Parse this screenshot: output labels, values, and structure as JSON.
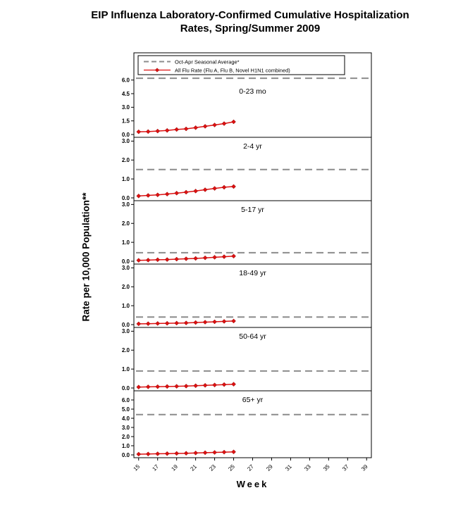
{
  "title": {
    "line1": "EIP Influenza Laboratory-Confirmed Cumulative Hospitalization",
    "line2": "Rates, Spring/Summer 2009"
  },
  "axis": {
    "ylabel": "Rate per 10,000 Population**",
    "xlabel": "Week"
  },
  "legend": {
    "items": [
      {
        "name": "seasonal-average",
        "label": "Oct-Apr Seasonal Average*",
        "style": "dashed-gray-line"
      },
      {
        "name": "all-flu-rate",
        "label": "All Flu Rate (Flu A, Flu B, Novel H1N1 combined)",
        "style": "red-line-diamond-markers"
      }
    ]
  },
  "colors": {
    "flu": "#dd1111",
    "flu_marker_edge": "#8b0000",
    "seasonal": "#8c8c8c",
    "axis": "#000000",
    "background": "#ffffff"
  },
  "chart_data": {
    "type": "line",
    "xlabel": "Week",
    "ylabel": "Rate per 10,000 Population**",
    "x": [
      15,
      16,
      17,
      18,
      19,
      20,
      21,
      22,
      23,
      24,
      25
    ],
    "x_ticks": [
      15,
      17,
      19,
      21,
      23,
      25,
      27,
      29,
      31,
      33,
      35,
      37,
      39
    ],
    "x_range": [
      14.5,
      39.5
    ],
    "grid": false,
    "legend_position": "top-inside-first-panel",
    "panels": [
      {
        "label": "0-23 mo",
        "y_ticks": [
          0.0,
          1.5,
          3.0,
          4.5,
          6.0
        ],
        "y_top": 9.0,
        "seasonal_average": 6.2,
        "values": [
          0.3,
          0.32,
          0.38,
          0.45,
          0.55,
          0.62,
          0.75,
          0.9,
          1.05,
          1.2,
          1.4
        ]
      },
      {
        "label": "2-4 yr",
        "y_ticks": [
          0.0,
          1.0,
          2.0,
          3.0
        ],
        "y_top": 3.2,
        "seasonal_average": 1.5,
        "values": [
          0.1,
          0.13,
          0.16,
          0.2,
          0.25,
          0.3,
          0.36,
          0.43,
          0.5,
          0.56,
          0.6
        ]
      },
      {
        "label": "5-17 yr",
        "y_ticks": [
          0.0,
          1.0,
          2.0,
          3.0
        ],
        "y_top": 3.2,
        "seasonal_average": 0.45,
        "values": [
          0.05,
          0.06,
          0.08,
          0.09,
          0.11,
          0.13,
          0.15,
          0.18,
          0.21,
          0.24,
          0.27
        ]
      },
      {
        "label": "18-49 yr",
        "y_ticks": [
          0.0,
          1.0,
          2.0,
          3.0
        ],
        "y_top": 3.2,
        "seasonal_average": 0.4,
        "values": [
          0.04,
          0.05,
          0.06,
          0.07,
          0.08,
          0.09,
          0.11,
          0.13,
          0.15,
          0.17,
          0.19
        ]
      },
      {
        "label": "50-64 yr",
        "y_ticks": [
          0.0,
          1.0,
          2.0,
          3.0
        ],
        "y_top": 3.2,
        "seasonal_average": 0.9,
        "values": [
          0.05,
          0.06,
          0.07,
          0.08,
          0.09,
          0.1,
          0.12,
          0.14,
          0.16,
          0.18,
          0.2
        ]
      },
      {
        "label": "65+ yr",
        "y_ticks": [
          0.0,
          1.0,
          2.0,
          3.0,
          4.0,
          5.0,
          6.0
        ],
        "y_top": 7.0,
        "seasonal_average": 4.4,
        "values": [
          0.08,
          0.1,
          0.12,
          0.14,
          0.16,
          0.18,
          0.21,
          0.24,
          0.27,
          0.3,
          0.33
        ]
      }
    ]
  }
}
